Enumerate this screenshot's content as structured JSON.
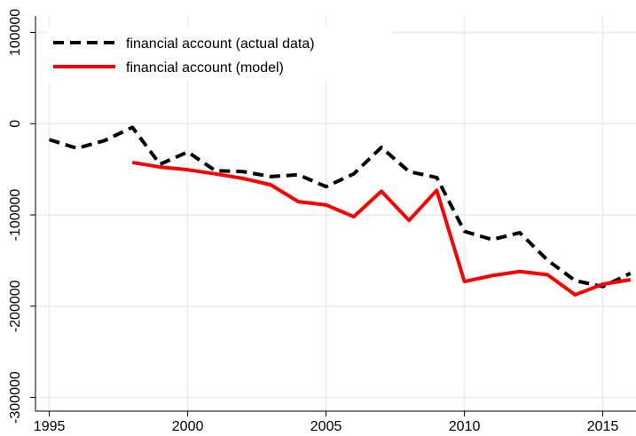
{
  "chart_data": {
    "type": "line",
    "x": [
      1995,
      1996,
      1997,
      1998,
      1999,
      2000,
      2001,
      2002,
      2003,
      2004,
      2005,
      2006,
      2007,
      2008,
      2009,
      2010,
      2011,
      2012,
      2013,
      2014,
      2015,
      2016
    ],
    "series": [
      {
        "name": "financial account (actual data)",
        "color": "#000000",
        "dash": true,
        "values": [
          -17500,
          -27000,
          -18500,
          -4000,
          -44500,
          -31000,
          -51500,
          -52500,
          -58000,
          -56000,
          -69000,
          -55000,
          -26000,
          -52500,
          -59000,
          -118000,
          -127000,
          -119500,
          -149500,
          -172000,
          -178500,
          -164000
        ]
      },
      {
        "name": "financial account (model)",
        "color": "#ff0000",
        "dash": false,
        "values": [
          null,
          null,
          null,
          -42500,
          -47500,
          -50500,
          -55000,
          -60000,
          -67000,
          -85500,
          -89000,
          -102000,
          -74000,
          -106000,
          -73000,
          -173000,
          -166500,
          -162000,
          -165500,
          -187500,
          -176000,
          -171000
        ]
      }
    ],
    "xlim": [
      1994.5,
      2016.2
    ],
    "ylim": [
      -315000,
      118000
    ],
    "xticks": [
      1995,
      2000,
      2005,
      2010,
      2015
    ],
    "yticks": [
      100000,
      0,
      -100000,
      -200000,
      -300000
    ],
    "grid": true,
    "legend": "upper left"
  }
}
